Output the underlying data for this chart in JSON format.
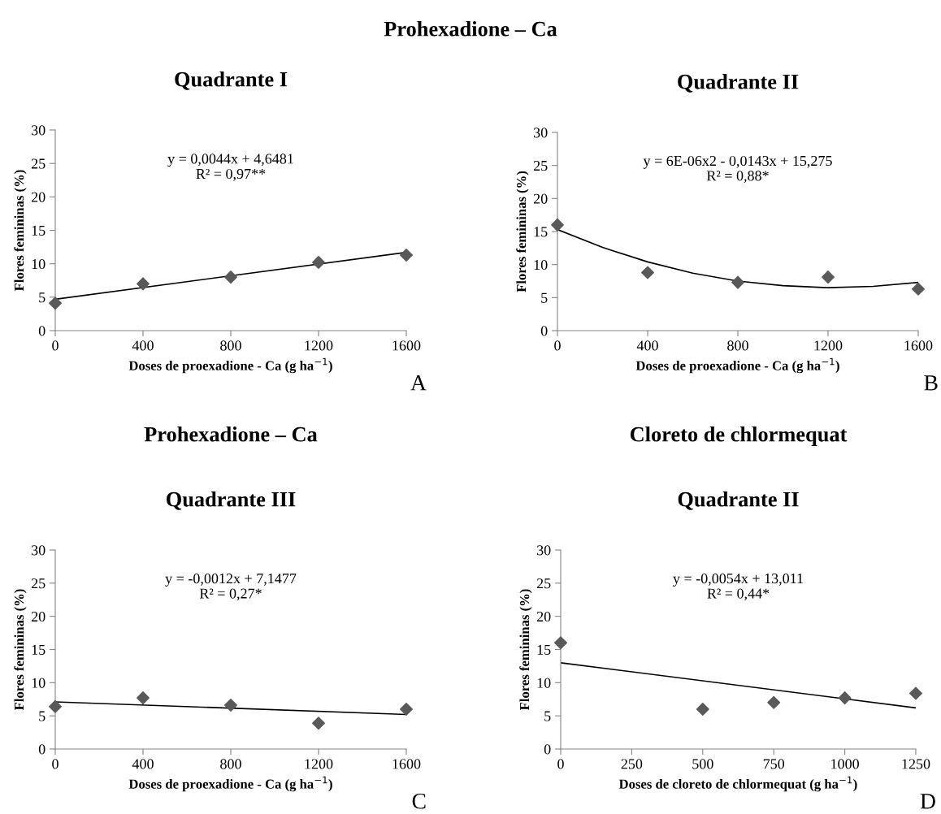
{
  "chart_data": [
    {
      "type": "scatter",
      "title": "Prohexadione – Ca",
      "subtitle": "Quadrante I",
      "xlabel": "Doses de proexadione - Ca (g ha$^{−1}$)",
      "ylabel": "Flores femininas (%)",
      "xlim": [
        0,
        1600
      ],
      "xticks": [
        0,
        400,
        800,
        1200,
        1600
      ],
      "ylim": [
        0,
        30
      ],
      "yticks": [
        0,
        5,
        10,
        15,
        20,
        25,
        30
      ],
      "grid": false,
      "legend": false,
      "annotations": [
        "y = 0,0044x + 4,6481",
        "R² = 0,97**",
        "A"
      ],
      "series": [
        {
          "marker": "diamond",
          "color": "#595959",
          "x": [
            0,
            400,
            800,
            1200,
            1600
          ],
          "values": [
            4.1,
            7.0,
            8.0,
            10.2,
            11.3
          ]
        },
        {
          "type": "line",
          "marker": "none",
          "color": "#000000",
          "x": [
            0,
            1600
          ],
          "values": [
            4.7,
            11.7
          ]
        }
      ]
    },
    {
      "type": "scatter",
      "subtitle": "Quadrante II",
      "xlabel": "Doses de proexadione - Ca (g ha$^{−1}$)",
      "ylabel": "Flores femininas (%)",
      "xlim": [
        0,
        1600
      ],
      "xticks": [
        0,
        400,
        800,
        1200,
        1600
      ],
      "ylim": [
        0,
        30
      ],
      "yticks": [
        0,
        5,
        10,
        15,
        20,
        25,
        30
      ],
      "grid": false,
      "legend": false,
      "annotations": [
        "y = 6E-06x2 - 0,0143x + 15,275",
        "R² = 0,88*",
        "B"
      ],
      "series": [
        {
          "marker": "diamond",
          "color": "#595959",
          "x": [
            0,
            400,
            800,
            1200,
            1600
          ],
          "values": [
            16.0,
            8.8,
            7.3,
            8.1,
            6.3
          ]
        },
        {
          "type": "line",
          "marker": "none",
          "color": "#000000",
          "x": [
            0,
            200,
            400,
            600,
            800,
            1000,
            1200,
            1400,
            1600
          ],
          "values": [
            15.3,
            12.6,
            10.4,
            8.7,
            7.5,
            6.8,
            6.5,
            6.7,
            7.3
          ]
        }
      ]
    },
    {
      "type": "scatter",
      "title": "Prohexadione – Ca",
      "subtitle": "Quadrante III",
      "xlabel": "Doses de proexadione - Ca (g ha$^{−1}$)",
      "ylabel": "Flores femininas (%)",
      "xlim": [
        0,
        1600
      ],
      "xticks": [
        0,
        400,
        800,
        1200,
        1600
      ],
      "ylim": [
        0,
        30
      ],
      "yticks": [
        0,
        5,
        10,
        15,
        20,
        25,
        30
      ],
      "grid": false,
      "legend": false,
      "annotations": [
        "y = -0,0012x + 7,1477",
        "R² = 0,27*",
        "C"
      ],
      "series": [
        {
          "marker": "diamond",
          "color": "#595959",
          "x": [
            0,
            400,
            800,
            1200,
            1600
          ],
          "values": [
            6.4,
            7.7,
            6.6,
            3.9,
            6.0
          ]
        },
        {
          "type": "line",
          "marker": "none",
          "color": "#000000",
          "x": [
            0,
            1600
          ],
          "values": [
            7.1,
            5.2
          ]
        }
      ]
    },
    {
      "type": "scatter",
      "title": "Cloreto de chlormequat",
      "subtitle": "Quadrante II",
      "xlabel": "Doses de cloreto de chlormequat (g ha$^{−1}$)",
      "ylabel": "Flores femininas (%)",
      "xlim": [
        0,
        1250
      ],
      "xticks": [
        0,
        250,
        500,
        750,
        1000,
        1250
      ],
      "ylim": [
        0,
        30
      ],
      "yticks": [
        0,
        5,
        10,
        15,
        20,
        25,
        30
      ],
      "grid": false,
      "legend": false,
      "annotations": [
        "y = -0,0054x + 13,011",
        "R² = 0,44*",
        "D"
      ],
      "series": [
        {
          "marker": "diamond",
          "color": "#595959",
          "x": [
            0,
            500,
            750,
            1000,
            1250
          ],
          "values": [
            16.0,
            6.0,
            7.0,
            7.7,
            8.4
          ]
        },
        {
          "type": "line",
          "marker": "none",
          "color": "#000000",
          "x": [
            0,
            1250
          ],
          "values": [
            13.0,
            6.2
          ]
        }
      ]
    }
  ]
}
